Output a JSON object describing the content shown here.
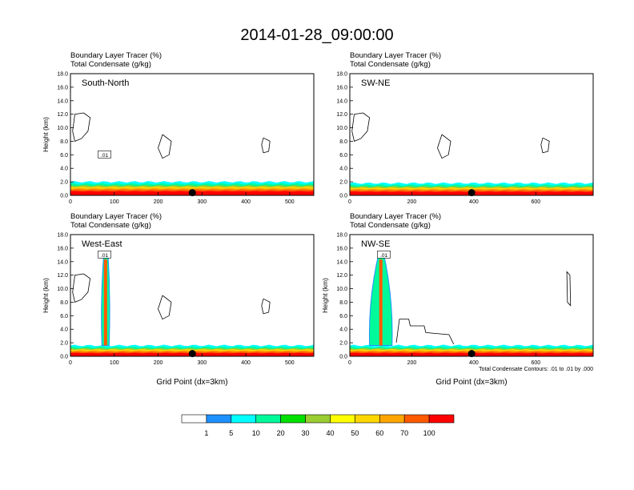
{
  "title": "2014-01-28_09:00:00",
  "chart_data": [
    {
      "type": "heatmap",
      "name": "South-North",
      "label_top": "Boundary Layer Tracer   (%)",
      "label_bottom": "Total Condensate   (g/kg)",
      "ylabel": "Height (km)",
      "xlabel": "",
      "xlim": [
        0,
        555
      ],
      "ylim": [
        0,
        18
      ],
      "xticks": [
        0,
        100,
        200,
        300,
        400,
        500
      ],
      "yticks": [
        "0.0",
        "2.0",
        "4.0",
        "6.0",
        "8.0",
        "10.0",
        "12.0",
        "14.0",
        "16.0",
        "18.0"
      ],
      "marker_x": 278,
      "contour_label": ".01",
      "tracer_top_km": 2.0,
      "plumes": [],
      "note": ""
    },
    {
      "type": "heatmap",
      "name": "SW-NE",
      "label_top": "Boundary Layer Tracer   (%)",
      "label_bottom": "Total Condensate   (g/kg)",
      "ylabel": "",
      "xlabel": "",
      "xlim": [
        0,
        785
      ],
      "ylim": [
        0,
        18
      ],
      "xticks": [
        0,
        200,
        400,
        600
      ],
      "yticks": [
        "0.0",
        "2.0",
        "4.0",
        "6.0",
        "8.0",
        "10.0",
        "12.0",
        "14.0",
        "16.0",
        "18.0"
      ],
      "marker_x": 393,
      "contour_label": "",
      "tracer_top_km": 1.8,
      "plumes": [],
      "note": ""
    },
    {
      "type": "heatmap",
      "name": "West-East",
      "label_top": "Boundary Layer Tracer   (%)",
      "label_bottom": "Total Condensate   (g/kg)",
      "ylabel": "Height (km)",
      "xlabel": "Grid Point (dx=3km)",
      "xlim": [
        0,
        555
      ],
      "ylim": [
        0,
        18
      ],
      "xticks": [
        0,
        100,
        200,
        300,
        400,
        500
      ],
      "yticks": [
        "0.0",
        "2.0",
        "4.0",
        "6.0",
        "8.0",
        "10.0",
        "12.0",
        "14.0",
        "16.0",
        "18.0"
      ],
      "marker_x": 278,
      "contour_label": ".01",
      "tracer_top_km": 1.6,
      "plumes": [
        {
          "x": 80,
          "top_km": 15.5,
          "width": 9
        }
      ],
      "note": ""
    },
    {
      "type": "heatmap",
      "name": "NW-SE",
      "label_top": "Boundary Layer Tracer   (%)",
      "label_bottom": "Total Condensate   (g/kg)",
      "ylabel": "Height (km)",
      "xlabel": "Grid Point (dx=3km)",
      "xlim": [
        0,
        785
      ],
      "ylim": [
        0,
        18
      ],
      "xticks": [
        0,
        200,
        400,
        600
      ],
      "yticks": [
        "0.0",
        "2.0",
        "4.0",
        "6.0",
        "8.0",
        "10.0",
        "12.0",
        "14.0",
        "16.0",
        "18.0"
      ],
      "marker_x": 393,
      "contour_label": ".01",
      "tracer_top_km": 1.6,
      "plumes": [
        {
          "x": 100,
          "top_km": 15.5,
          "width": 28
        }
      ],
      "note": "Total Condensate Contours: .01 to .01 by .000"
    }
  ],
  "colorbar": {
    "labels": [
      "1",
      "5",
      "10",
      "20",
      "30",
      "40",
      "50",
      "60",
      "70",
      "100"
    ],
    "colors": [
      "#ffffff",
      "#1e90ff",
      "#00ffff",
      "#00fa9a",
      "#00e000",
      "#9acd32",
      "#ffff00",
      "#ffd700",
      "#ffa500",
      "#ff5a00",
      "#ff0000"
    ]
  }
}
